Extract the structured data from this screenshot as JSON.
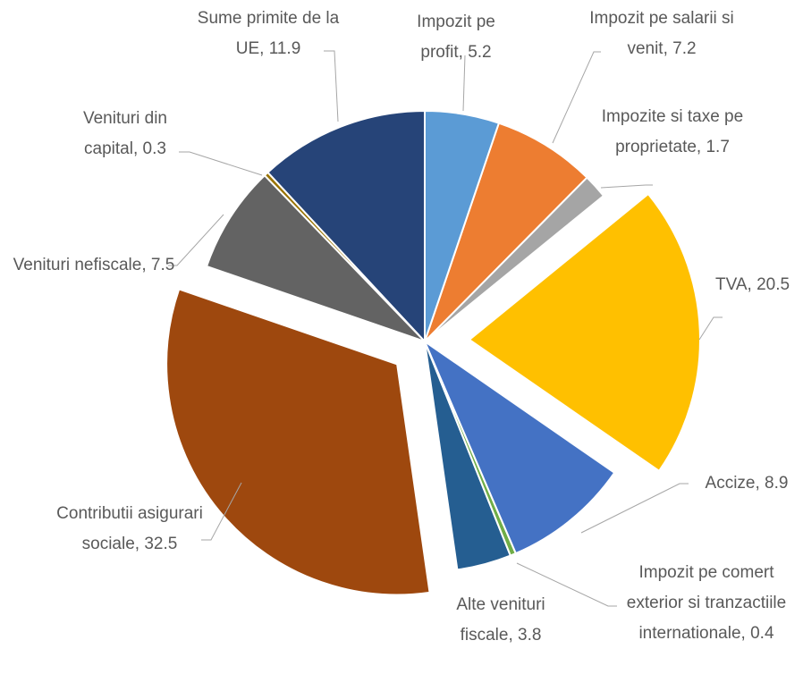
{
  "chart_data": {
    "type": "pie",
    "categories": [
      "Impozit pe profit",
      "Impozit pe salarii si venit",
      "Impozite si taxe pe proprietate",
      "TVA",
      "Accize",
      "Impozit pe comert exterior si tranzactiile internationale",
      "Alte venituri fiscale",
      "Contributii asigurari sociale",
      "Venituri nefiscale",
      "Venituri din capital",
      "Sume primite de la UE"
    ],
    "values": [
      5.2,
      7.2,
      1.7,
      20.5,
      8.9,
      0.4,
      3.8,
      32.5,
      7.5,
      0.3,
      11.9
    ],
    "colors": [
      "#5b9bd5",
      "#ed7d31",
      "#a5a5a5",
      "#ffc000",
      "#4472c4",
      "#70ad47",
      "#255e91",
      "#9e480e",
      "#636363",
      "#997300",
      "#264478"
    ],
    "label_separator": ", "
  }
}
